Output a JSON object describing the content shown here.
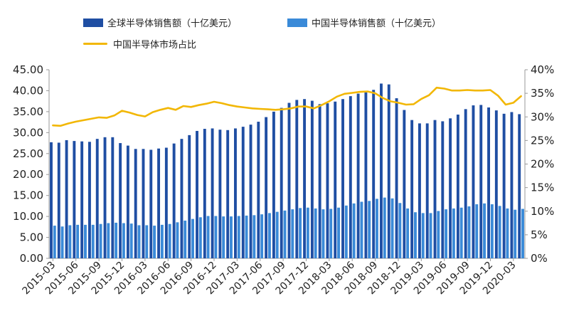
{
  "chart_data": {
    "type": "bar",
    "title": "",
    "legend": [
      {
        "label": "全球半导体销售额（十亿美元）",
        "color": "#1f4ea3",
        "kind": "bar"
      },
      {
        "label": "中国半导体销售额（十亿美元）",
        "color": "#3a8ad8",
        "kind": "bar"
      },
      {
        "label": "中国半导体市场占比",
        "color": "#f2b705",
        "kind": "line"
      }
    ],
    "y_left": {
      "min": 0,
      "max": 45,
      "step": 5,
      "ticks": [
        "0.00",
        "5.00",
        "10.00",
        "15.00",
        "20.00",
        "25.00",
        "30.00",
        "35.00",
        "40.00",
        "45.00"
      ]
    },
    "y_right": {
      "min": 0,
      "max": 40,
      "step": 5,
      "ticks": [
        "0%",
        "5%",
        "10%",
        "15%",
        "20%",
        "25%",
        "30%",
        "35%",
        "40%"
      ]
    },
    "x_tick_labels": [
      "2015-03",
      "2015-06",
      "2015-09",
      "2015-12",
      "2016-03",
      "2016-06",
      "2016-09",
      "2016-12",
      "2017-03",
      "2017-06",
      "2017-09",
      "2017-12",
      "2018-03",
      "2018-06",
      "2018-09",
      "2018-12",
      "2019-03",
      "2019-06",
      "2019-09",
      "2019-12",
      "2020-03"
    ],
    "categories": [
      "2015-03",
      "2015-04",
      "2015-05",
      "2015-06",
      "2015-07",
      "2015-08",
      "2015-09",
      "2015-10",
      "2015-11",
      "2015-12",
      "2016-01",
      "2016-02",
      "2016-03",
      "2016-04",
      "2016-05",
      "2016-06",
      "2016-07",
      "2016-08",
      "2016-09",
      "2016-10",
      "2016-11",
      "2016-12",
      "2017-01",
      "2017-02",
      "2017-03",
      "2017-04",
      "2017-05",
      "2017-06",
      "2017-07",
      "2017-08",
      "2017-09",
      "2017-10",
      "2017-11",
      "2017-12",
      "2018-01",
      "2018-02",
      "2018-03",
      "2018-04",
      "2018-05",
      "2018-06",
      "2018-07",
      "2018-08",
      "2018-09",
      "2018-10",
      "2018-11",
      "2018-12",
      "2019-01",
      "2019-02",
      "2019-03",
      "2019-04",
      "2019-05",
      "2019-06",
      "2019-07",
      "2019-08",
      "2019-09",
      "2019-10",
      "2019-11",
      "2019-12",
      "2020-01",
      "2020-02",
      "2020-03",
      "2020-04"
    ],
    "series": [
      {
        "name": "全球半导体销售额（十亿美元）",
        "axis": "left",
        "values": [
          27.7,
          27.6,
          28.2,
          28.0,
          27.9,
          27.8,
          28.5,
          28.9,
          28.9,
          27.5,
          26.9,
          26.1,
          26.1,
          25.9,
          26.2,
          26.4,
          27.4,
          28.5,
          29.4,
          30.4,
          30.9,
          31.0,
          30.7,
          30.6,
          31.0,
          31.4,
          31.9,
          32.6,
          33.7,
          35.0,
          35.9,
          37.1,
          37.8,
          38.0,
          37.6,
          36.8,
          37.0,
          37.4,
          38.0,
          38.7,
          39.3,
          39.6,
          40.2,
          41.7,
          41.5,
          38.2,
          35.4,
          33.0,
          32.2,
          32.2,
          33.0,
          32.7,
          33.4,
          34.3,
          35.6,
          36.5,
          36.6,
          36.0,
          35.3,
          34.5,
          34.9,
          34.4
        ]
      },
      {
        "name": "中国半导体销售额（十亿美元）",
        "axis": "left",
        "values": [
          7.8,
          7.6,
          7.9,
          8.0,
          8.0,
          8.0,
          8.2,
          8.4,
          8.5,
          8.4,
          8.3,
          7.9,
          7.9,
          7.8,
          8.0,
          8.2,
          8.6,
          9.0,
          9.4,
          9.8,
          10.1,
          10.1,
          10.0,
          10.0,
          10.1,
          10.2,
          10.3,
          10.5,
          10.8,
          11.1,
          11.4,
          11.7,
          12.0,
          12.1,
          11.9,
          11.7,
          11.8,
          12.1,
          12.6,
          13.1,
          13.5,
          13.7,
          14.2,
          14.5,
          14.3,
          13.2,
          11.9,
          11.0,
          10.8,
          10.8,
          11.3,
          11.7,
          11.9,
          12.1,
          12.4,
          12.9,
          13.1,
          12.9,
          12.5,
          11.9,
          11.6,
          11.8
        ]
      },
      {
        "name": "中国半导体市场占比",
        "axis": "right",
        "values": [
          28.2,
          28.1,
          28.6,
          29.0,
          29.3,
          29.6,
          29.9,
          29.8,
          30.3,
          31.3,
          30.9,
          30.4,
          30.1,
          31.0,
          31.5,
          31.9,
          31.5,
          32.3,
          32.1,
          32.5,
          32.8,
          33.2,
          32.9,
          32.5,
          32.2,
          32.0,
          31.8,
          31.7,
          31.6,
          31.5,
          31.6,
          31.8,
          32.2,
          32.2,
          31.8,
          32.5,
          33.3,
          34.3,
          34.9,
          35.1,
          35.3,
          35.4,
          35.0,
          34.0,
          33.3,
          33.0,
          32.6,
          32.7,
          33.8,
          34.6,
          36.2,
          36.0,
          35.6,
          35.6,
          35.7,
          35.6,
          35.6,
          35.7,
          34.5,
          32.6,
          33.0,
          34.4
        ]
      }
    ]
  }
}
